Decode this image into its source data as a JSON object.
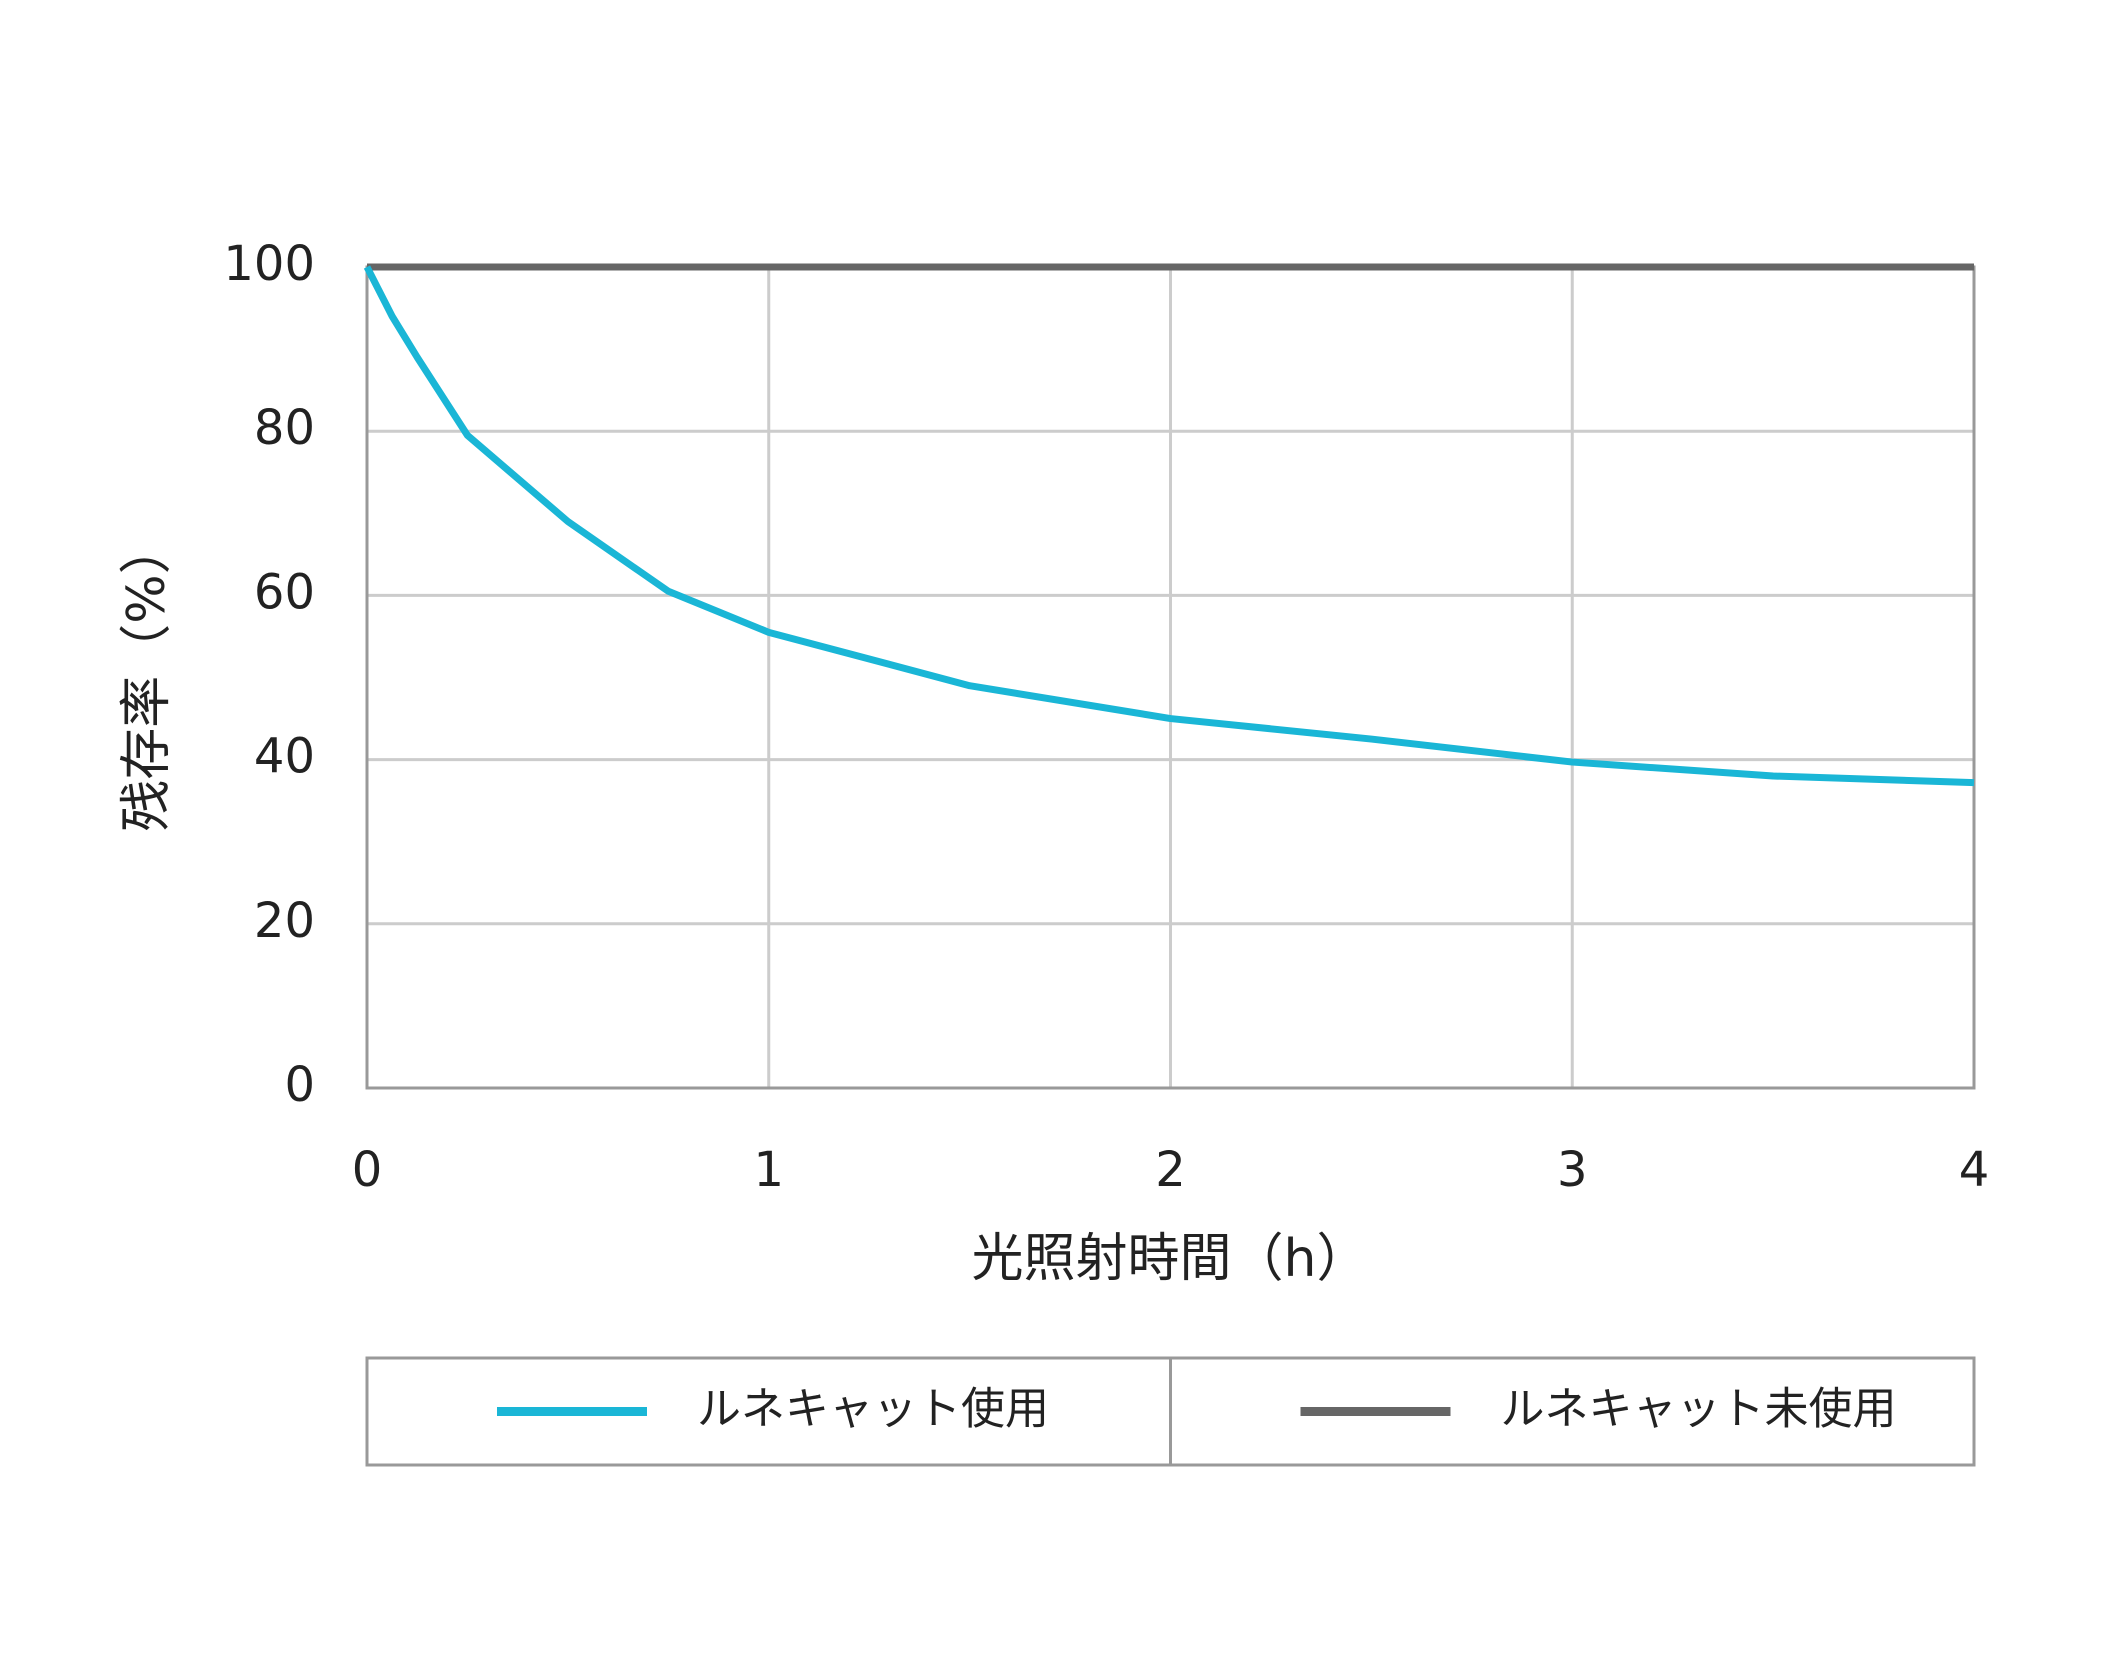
{
  "chart_data": {
    "type": "line",
    "x_label": "光照射時間（h）",
    "y_label": "残存率（%）",
    "x": [
      0,
      0.0625,
      0.125,
      0.25,
      0.5,
      0.75,
      1,
      1.5,
      2,
      2.5,
      3,
      3.5,
      4
    ],
    "series": [
      {
        "name": "ルネキャット使用",
        "color": "#1ab6d6",
        "values": [
          100,
          94,
          89,
          79.5,
          69,
          60.5,
          55.5,
          49,
          45,
          42.5,
          39.7,
          38,
          37.2
        ]
      },
      {
        "name": "ルネキャット未使用",
        "color": "#666666",
        "values": [
          100,
          100,
          100,
          100,
          100,
          100,
          100,
          100,
          100,
          100,
          100,
          100,
          100
        ]
      }
    ],
    "xlim": [
      0,
      4
    ],
    "xticks": [
      0,
      1,
      2,
      3,
      4
    ],
    "ylim": [
      0,
      100
    ],
    "yticks": [
      0,
      20,
      40,
      60,
      80,
      100
    ],
    "grid": true,
    "legend": "bottom"
  }
}
